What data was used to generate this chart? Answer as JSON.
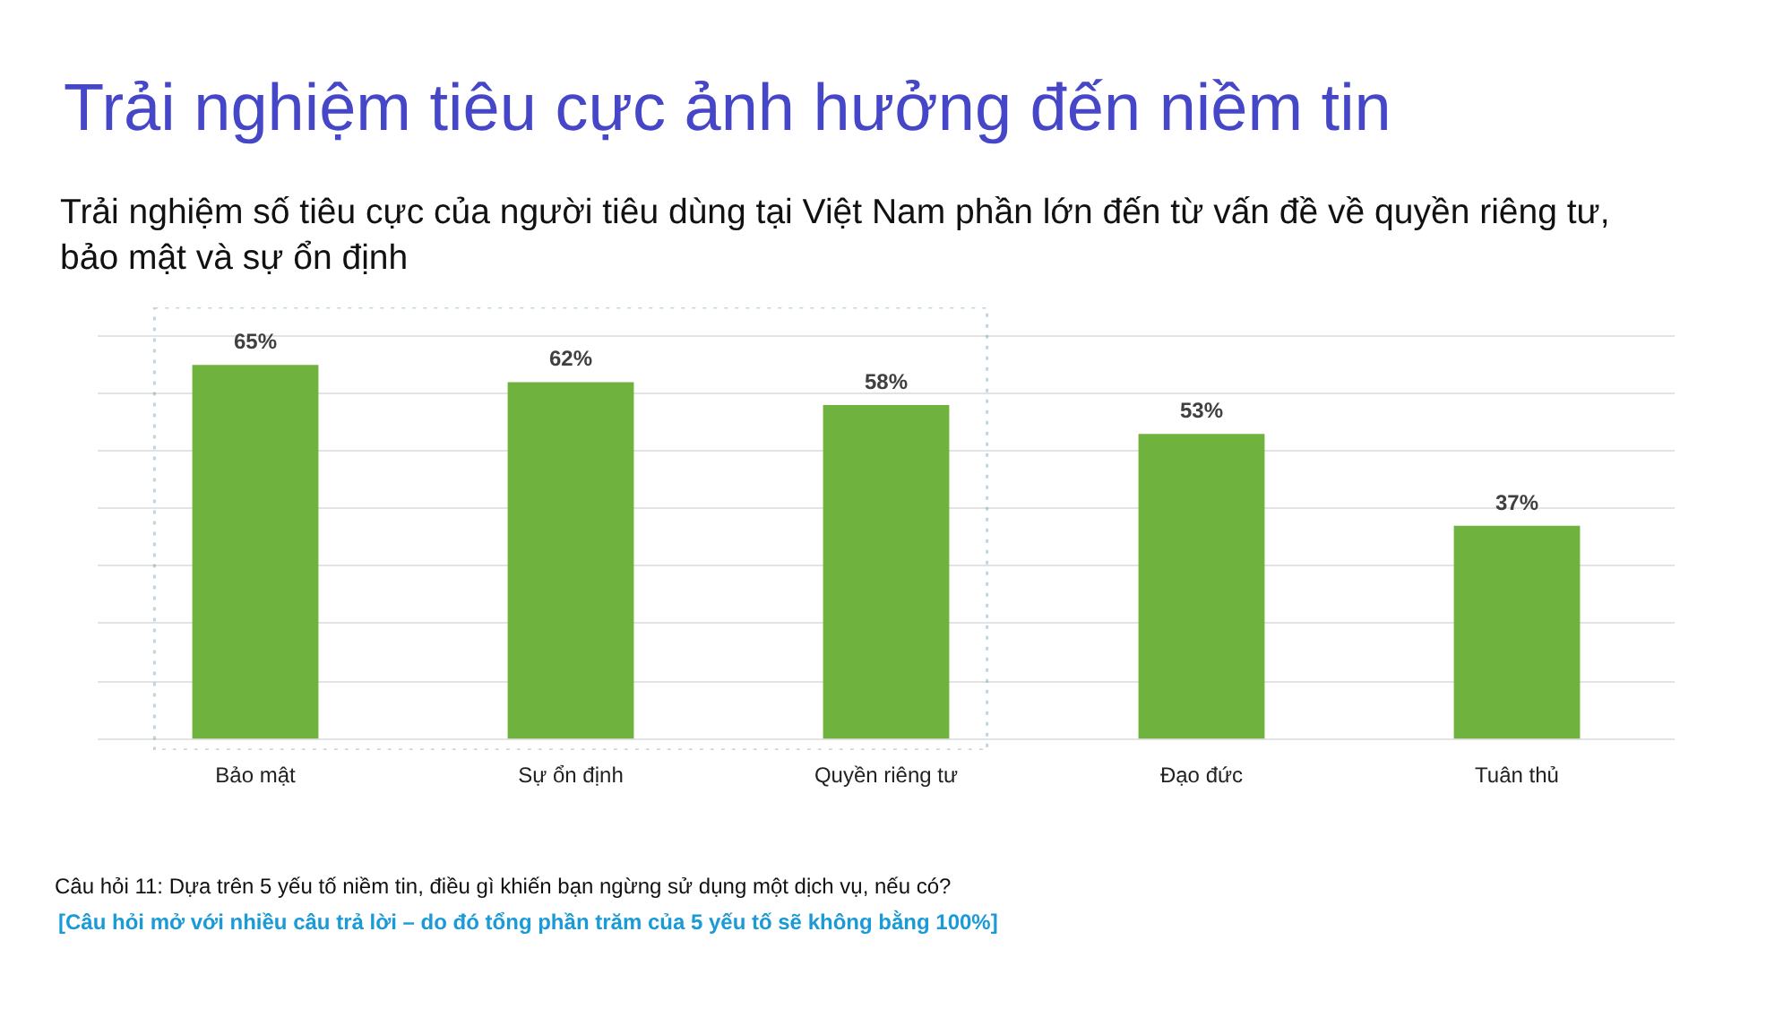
{
  "chart_data": {
    "type": "bar",
    "title": "Trải nghiệm tiêu cực ảnh hưởng đến niềm tin",
    "subtitle": "Trải nghiệm số tiêu cực của người tiêu dùng tại Việt Nam phần lớn đến từ vấn đề về quyền riêng tư, bảo mật và sự ổn định",
    "categories": [
      "Bảo mật",
      "Sự ổn định",
      "Quyền riêng tư",
      "Đạo đức",
      "Tuân thủ"
    ],
    "values": [
      65,
      62,
      58,
      53,
      37
    ],
    "value_labels": [
      "65%",
      "62%",
      "58%",
      "53%",
      "37%"
    ],
    "color": "#6fb33e",
    "ylim": [
      -2,
      75
    ],
    "yticks": [
      {
        "value": 0,
        "label": null
      },
      {
        "value": 10,
        "label": null
      },
      {
        "value": 20,
        "label": null
      },
      {
        "value": 30,
        "label": null
      },
      {
        "value": 40,
        "label": null
      },
      {
        "value": 50,
        "label": null
      },
      {
        "value": 60,
        "label": null
      },
      {
        "value": 70,
        "label": null
      }
    ],
    "grid": "y",
    "tick_labels": "x",
    "annotations": [
      "Câu hỏi 11: Dựa trên 5 yếu tố niềm tin, điều gì khiến bạn ngừng sử dụng một dịch vụ, nếu có?",
      "[Câu hỏi mở với nhiều câu trả lời – do đó tổng phần trăm của 5 yếu tố sẽ không bằng 100%]"
    ]
  }
}
